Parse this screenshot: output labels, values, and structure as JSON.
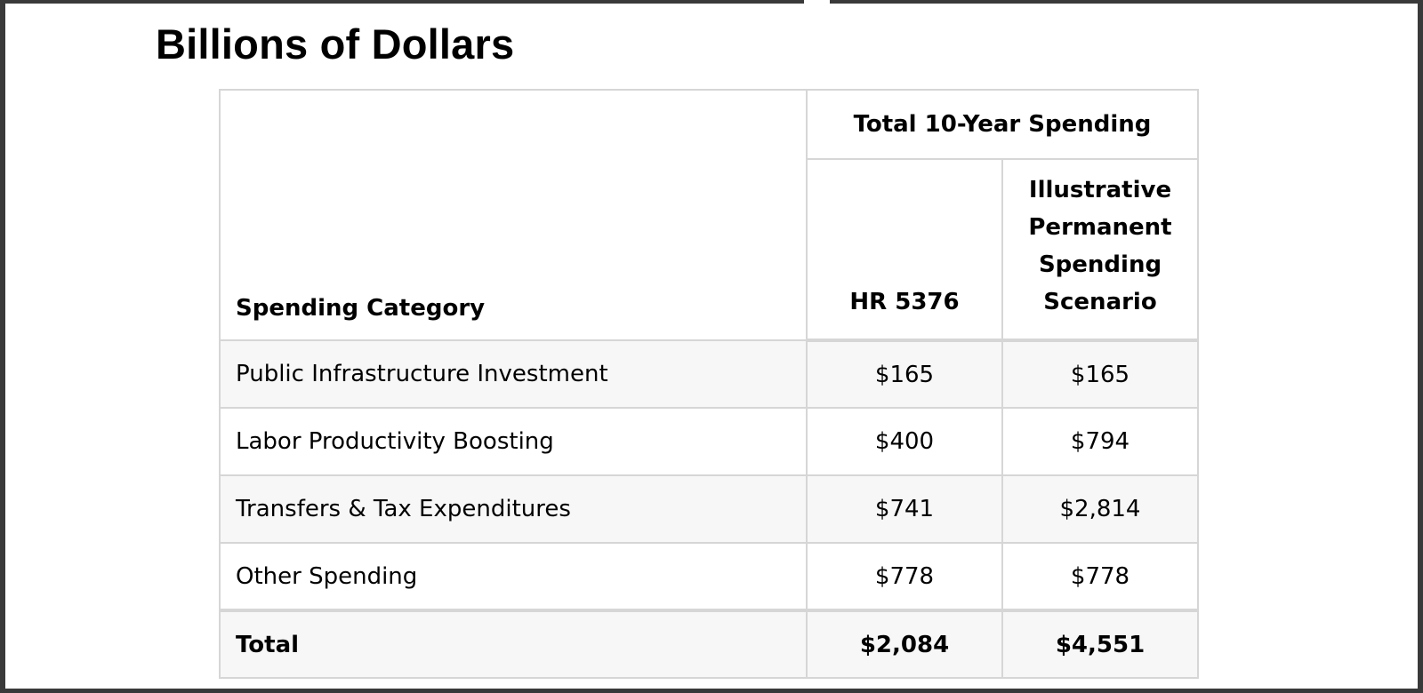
{
  "page": {
    "title": "Billions of Dollars"
  },
  "table": {
    "group_header": "Total 10-Year Spending",
    "category_header": "Spending Category",
    "col_hr": "HR 5376",
    "col_perm": "Illustrative Permanent Spending Scenario",
    "rows": [
      {
        "category": "Public Infrastructure Investment",
        "hr": "$165",
        "perm": "$165"
      },
      {
        "category": "Labor Productivity Boosting",
        "hr": "$400",
        "perm": "$794"
      },
      {
        "category": "Transfers & Tax Expenditures",
        "hr": "$741",
        "perm": "$2,814"
      },
      {
        "category": "Other Spending",
        "hr": "$778",
        "perm": "$778"
      }
    ],
    "total": {
      "category": "Total",
      "hr": "$2,084",
      "perm": "$4,551"
    }
  },
  "colors": {
    "border": "#d6d6d6",
    "row_shade": "#f7f7f7",
    "frame": "#3a3a3a"
  }
}
